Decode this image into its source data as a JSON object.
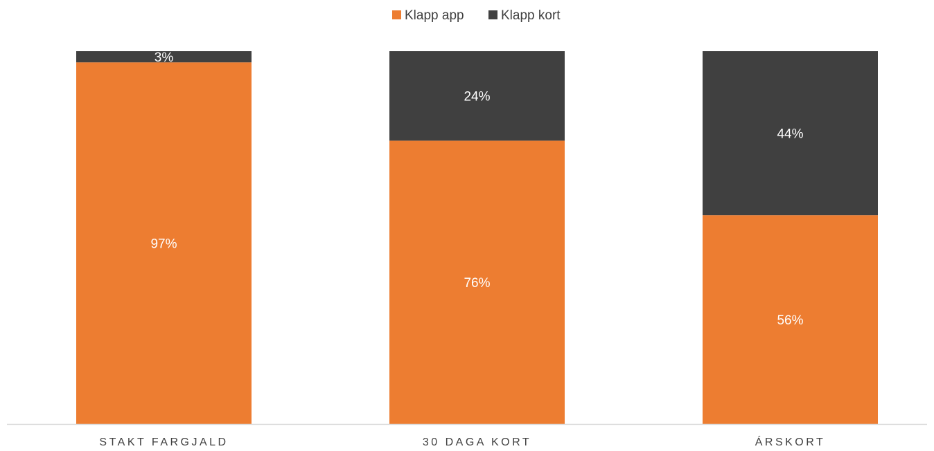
{
  "chart_data": {
    "type": "bar",
    "stacked": true,
    "percent_stacked": true,
    "categories": [
      "STAKT FARGJALD",
      "30 DAGA KORT",
      "ÁRSKORT"
    ],
    "series": [
      {
        "name": "Klapp app",
        "values": [
          97,
          76,
          56
        ],
        "labels": [
          "97%",
          "76%",
          "56%"
        ]
      },
      {
        "name": "Klapp kort",
        "values": [
          3,
          24,
          44
        ],
        "labels": [
          "3%",
          "24%",
          "44%"
        ]
      }
    ],
    "ylim": [
      0,
      100
    ],
    "legend_position": "top-center",
    "grid": false,
    "colors": {
      "Klapp app": "#ED7D31",
      "Klapp kort": "#404040",
      "axis": "#D9D9D9",
      "text": "#404040",
      "data_label": "#FFFFFF"
    }
  }
}
